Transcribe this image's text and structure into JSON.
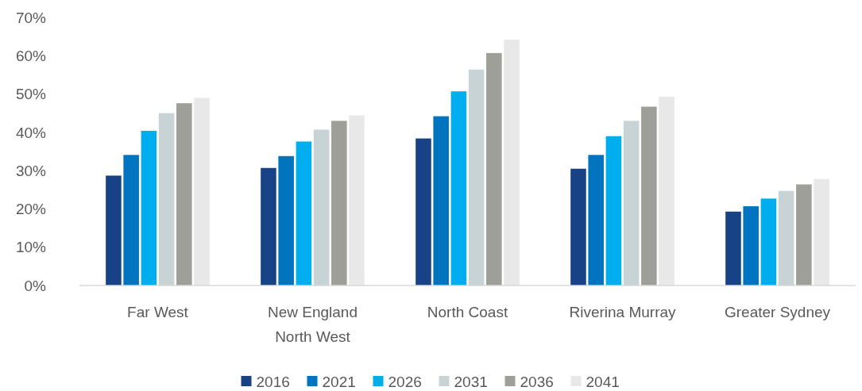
{
  "chart_data": {
    "type": "bar",
    "categories": [
      "Far West",
      "New England North West",
      "North Coast",
      "Riverina Murray",
      "Greater Sydney"
    ],
    "series": [
      {
        "name": "2016",
        "color": "#174386",
        "values": [
          28.7,
          30.7,
          38.4,
          30.5,
          19.3
        ]
      },
      {
        "name": "2021",
        "color": "#0174c0",
        "values": [
          34.1,
          33.8,
          44.2,
          34.1,
          20.7
        ]
      },
      {
        "name": "2026",
        "color": "#00aeef",
        "values": [
          40.4,
          37.6,
          50.7,
          39.0,
          22.7
        ]
      },
      {
        "name": "2031",
        "color": "#c8d3d5",
        "values": [
          45.0,
          40.7,
          56.4,
          43.0,
          24.7
        ]
      },
      {
        "name": "2036",
        "color": "#9f9f99",
        "values": [
          47.6,
          43.0,
          60.7,
          46.7,
          26.4
        ]
      },
      {
        "name": "2041",
        "color": "#e8e8e8",
        "values": [
          49.0,
          44.4,
          64.2,
          49.3,
          27.8
        ]
      }
    ],
    "ylim": [
      0,
      70
    ],
    "yticks": [
      {
        "value": 0,
        "label": "0%"
      },
      {
        "value": 10,
        "label": "10%"
      },
      {
        "value": 20,
        "label": "20%"
      },
      {
        "value": 30,
        "label": "30%"
      },
      {
        "value": 40,
        "label": "40%"
      },
      {
        "value": 50,
        "label": "50%"
      },
      {
        "value": 60,
        "label": "60%"
      },
      {
        "value": 70,
        "label": "70%"
      }
    ],
    "grid": false,
    "legend": "bottom"
  }
}
